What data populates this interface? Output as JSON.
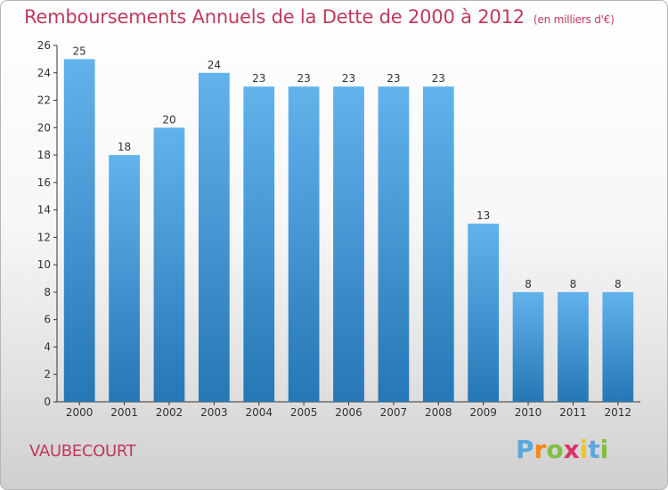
{
  "chart_data": {
    "type": "bar",
    "title": "Remboursements Annuels de la Dette de 2000 à 2012",
    "subtitle": "(en milliers d'€)",
    "categories": [
      "2000",
      "2001",
      "2002",
      "2003",
      "2004",
      "2005",
      "2006",
      "2007",
      "2008",
      "2009",
      "2010",
      "2011",
      "2012"
    ],
    "values": [
      25,
      18,
      20,
      24,
      23,
      23,
      23,
      23,
      23,
      13,
      8,
      8,
      8
    ],
    "ylim": [
      0,
      26
    ],
    "yticks": [
      0,
      2,
      4,
      6,
      8,
      10,
      12,
      14,
      16,
      18,
      20,
      22,
      24,
      26
    ],
    "grid": false,
    "xlabel": "",
    "ylabel": ""
  },
  "colors": {
    "bar_top": "#62b3ec",
    "bar_bottom": "#2577b5",
    "title": "#c0395a"
  },
  "footer": {
    "town": "VAUBECOURT"
  },
  "logo": {
    "text": "Proxiti",
    "letter_colors": [
      "#5aa7dd",
      "#f08a1c",
      "#7fbf3f",
      "#d9336b",
      "#f2c12e",
      "#5aa7dd",
      "#7fbf3f"
    ]
  }
}
